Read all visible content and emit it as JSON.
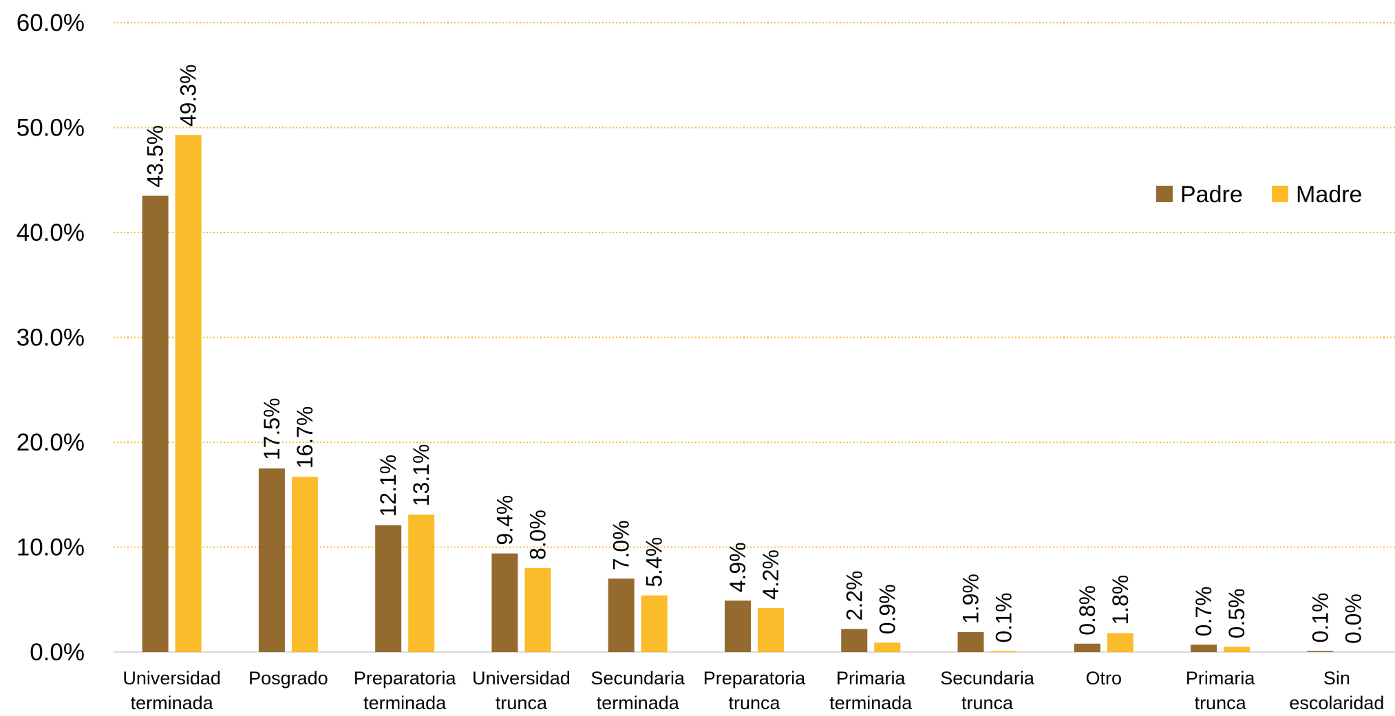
{
  "chart_data": {
    "type": "bar",
    "categories": [
      [
        "Universidad",
        "terminada"
      ],
      [
        "Posgrado"
      ],
      [
        "Preparatoria",
        "terminada"
      ],
      [
        "Universidad",
        "trunca"
      ],
      [
        "Secundaria",
        "terminada"
      ],
      [
        "Preparatoria",
        "trunca"
      ],
      [
        "Primaria",
        "terminada"
      ],
      [
        "Secundaria",
        "trunca"
      ],
      [
        "Otro"
      ],
      [
        "Primaria",
        "trunca"
      ],
      [
        "Sin",
        "escolaridad"
      ]
    ],
    "series": [
      {
        "name": "Padre",
        "color": "#956A2F",
        "values": [
          43.5,
          17.5,
          12.1,
          9.4,
          7.0,
          4.9,
          2.2,
          1.9,
          0.8,
          0.7,
          0.1
        ],
        "labels": [
          "43.5%",
          "17.5%",
          "12.1%",
          "9.4%",
          "7.0%",
          "4.9%",
          "2.2%",
          "1.9%",
          "0.8%",
          "0.7%",
          "0.1%"
        ]
      },
      {
        "name": "Madre",
        "color": "#FBBC2C",
        "values": [
          49.3,
          16.7,
          13.1,
          8.0,
          5.4,
          4.2,
          0.9,
          0.1,
          1.8,
          0.5,
          0.0
        ],
        "labels": [
          "49.3%",
          "16.7%",
          "13.1%",
          "8.0%",
          "5.4%",
          "4.2%",
          "0.9%",
          "0.1%",
          "1.8%",
          "0.5%",
          "0.0%"
        ]
      }
    ],
    "ylim": [
      0,
      60
    ],
    "yticks": [
      0,
      10,
      20,
      30,
      40,
      50,
      60
    ],
    "ytick_labels": [
      "0.0%",
      "10.0%",
      "20.0%",
      "30.0%",
      "40.0%",
      "50.0%",
      "60.0%"
    ],
    "grid": true,
    "grid_color": "#F2C12E",
    "legend_position": "right"
  }
}
